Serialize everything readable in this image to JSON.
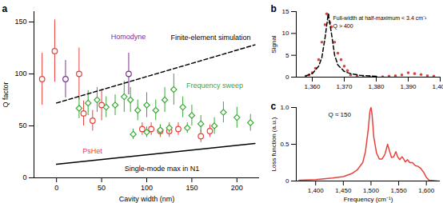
{
  "chart_data": [
    {
      "type": "scatter",
      "title": "a",
      "xlabel": "Cavity width (nm)",
      "ylabel": "Q factor",
      "xlim": [
        -25,
        225
      ],
      "xticks": [
        0,
        50,
        100,
        150,
        200
      ],
      "ylim": [
        0,
        160
      ],
      "yticks": [
        0,
        50,
        100,
        150
      ],
      "series": [
        {
          "name": "PsHet",
          "color": "#e8413c",
          "marker": "circle",
          "x": [
            -16,
            -2,
            25,
            30,
            40,
            50,
            95,
            105,
            115,
            125,
            135,
            160,
            170
          ],
          "values": [
            95,
            122,
            100,
            62,
            55,
            70,
            47,
            47,
            45,
            45,
            47,
            40,
            45
          ],
          "errors": [
            25,
            30,
            25,
            12,
            10,
            15,
            6,
            6,
            6,
            6,
            6,
            6,
            6
          ]
        },
        {
          "name": "Homodyne",
          "color": "#7b3294",
          "marker": "circle",
          "x": [
            10,
            80
          ],
          "values": [
            95,
            100
          ],
          "errors": [
            18,
            20
          ]
        },
        {
          "name": "Frequency sweep",
          "color": "#3aaa35",
          "marker": "diamond",
          "x": [
            25,
            35,
            45,
            55,
            65,
            75,
            82,
            90,
            100,
            110,
            120,
            130,
            140,
            150,
            160,
            175,
            185,
            200,
            215,
            85,
            100,
            115,
            125,
            145
          ],
          "values": [
            67,
            72,
            75,
            68,
            70,
            78,
            75,
            65,
            70,
            65,
            75,
            85,
            68,
            60,
            52,
            50,
            63,
            58,
            53,
            42,
            44,
            46,
            48,
            48
          ],
          "errors": [
            10,
            12,
            12,
            10,
            10,
            15,
            12,
            10,
            12,
            10,
            12,
            15,
            10,
            10,
            8,
            8,
            10,
            10,
            8,
            5,
            5,
            5,
            5,
            5
          ]
        },
        {
          "name": "Finite-element simulation",
          "type": "line",
          "line_style": "dashed",
          "color": "#000000",
          "x": [
            0,
            220
          ],
          "values": [
            72,
            128
          ]
        },
        {
          "name": "Single-mode max in N1",
          "type": "line",
          "line_style": "solid",
          "color": "#000000",
          "x": [
            0,
            220
          ],
          "values": [
            13,
            33
          ]
        }
      ]
    },
    {
      "type": "scatter",
      "title": "b",
      "ylabel": "Signal",
      "xlim": [
        1355,
        1400
      ],
      "xticks": [
        {
          "value": 1360,
          "label": "1,360"
        },
        {
          "value": 1370,
          "label": "1,370"
        },
        {
          "value": 1380,
          "label": "1,380"
        },
        {
          "value": 1390,
          "label": "1,390"
        },
        {
          "value": 1400,
          "label": "1,400"
        }
      ],
      "ylim": [
        0,
        15
      ],
      "yticks": [
        0,
        5,
        10,
        15
      ],
      "annotations": [
        "Full-width at half-maximum < 3.4 cm⁻¹",
        "Q > 400"
      ],
      "series": [
        {
          "type": "scatter",
          "marker": "dot",
          "color": "#e8413c",
          "x": [
            1358,
            1359,
            1360,
            1361,
            1362,
            1363,
            1364,
            1364.5,
            1365,
            1365.5,
            1366,
            1367,
            1368,
            1369,
            1370,
            1371,
            1372,
            1374,
            1376,
            1378,
            1380,
            1382,
            1384,
            1386,
            1388,
            1390,
            1392,
            1394,
            1396,
            1398
          ],
          "values": [
            0.2,
            0.5,
            1,
            2,
            4,
            8,
            12,
            14.5,
            14.2,
            12.5,
            11.5,
            8,
            5.5,
            4,
            2.5,
            1.5,
            0.5,
            0.2,
            0,
            0.1,
            0,
            0.1,
            0.2,
            0.3,
            0.5,
            1,
            0.8,
            0.6,
            0.3,
            0.2
          ]
        },
        {
          "type": "line",
          "line_style": "dashed",
          "color": "#000000",
          "x": [
            1358,
            1360,
            1362,
            1363,
            1364,
            1365,
            1366,
            1367,
            1368,
            1370,
            1372,
            1375,
            1380
          ],
          "values": [
            0.3,
            0.8,
            2.5,
            4.5,
            9,
            14.5,
            10,
            5,
            2.8,
            1.3,
            0.8,
            0.4,
            0.2
          ]
        }
      ]
    },
    {
      "type": "line",
      "title": "c",
      "xlabel": "Frequency (cm⁻¹)",
      "ylabel": "Loss function (a.u.)",
      "xlim": [
        1365,
        1625
      ],
      "xticks": [
        {
          "value": 1400,
          "label": "1,400"
        },
        {
          "value": 1450,
          "label": "1,450"
        },
        {
          "value": 1500,
          "label": "1,500"
        },
        {
          "value": 1550,
          "label": "1,550"
        },
        {
          "value": 1600,
          "label": "1,600"
        }
      ],
      "ylim": [
        0,
        1
      ],
      "yticks": [
        0,
        0.5,
        {
          "value": 1,
          "label": "1.0"
        }
      ],
      "annotations": [
        "Q ≈ 150"
      ],
      "series": [
        {
          "type": "line",
          "line_style": "solid",
          "color": "#e8413c",
          "x": [
            1370,
            1400,
            1430,
            1450,
            1465,
            1475,
            1485,
            1490,
            1495,
            1498,
            1500,
            1502,
            1505,
            1510,
            1515,
            1520,
            1525,
            1530,
            1533,
            1537,
            1541,
            1545,
            1548,
            1552,
            1556,
            1558,
            1562,
            1566,
            1570,
            1575,
            1580,
            1585,
            1590,
            1595,
            1600,
            1605,
            1620
          ],
          "values": [
            0.01,
            0.02,
            0.04,
            0.06,
            0.1,
            0.15,
            0.25,
            0.4,
            0.7,
            0.95,
            1.0,
            0.9,
            0.6,
            0.38,
            0.3,
            0.3,
            0.36,
            0.5,
            0.42,
            0.32,
            0.33,
            0.4,
            0.33,
            0.29,
            0.33,
            0.31,
            0.26,
            0.29,
            0.25,
            0.25,
            0.21,
            0.2,
            0.17,
            0.12,
            0.05,
            0.01,
            0
          ]
        }
      ]
    }
  ]
}
